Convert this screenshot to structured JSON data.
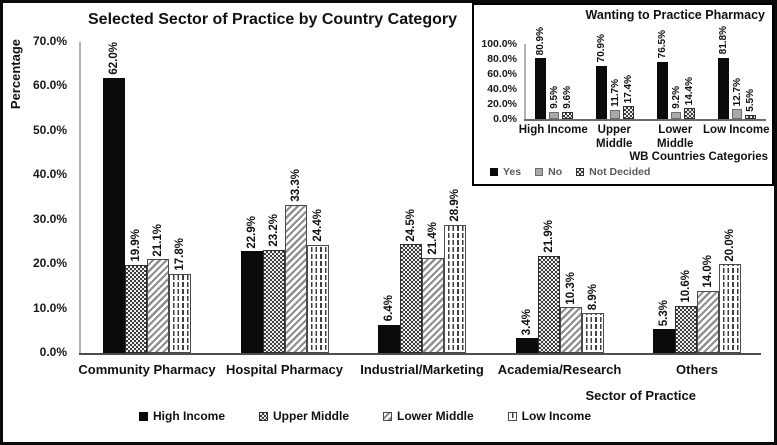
{
  "figure": {
    "background": "#ffffff",
    "border_color": "#000000"
  },
  "colors": {
    "bar_black": "#0b0b0b",
    "bar_gray": "#a9a9a9",
    "pattern_dark": "#3c3c3c",
    "axis_line": "#b3b3b3",
    "baseline": "#4d4d4d",
    "text": "#111111",
    "inset_legend_text": "#595959"
  },
  "chart_data": [
    {
      "id": "main",
      "type": "bar",
      "title": "Selected Sector of Practice by Country Category",
      "ylabel": "Percentage",
      "xlabel": "Sector of Practice",
      "ylim": [
        0,
        70
      ],
      "y_ticks": [
        "0.0%",
        "10.0%",
        "20.0%",
        "30.0%",
        "40.0%",
        "50.0%",
        "60.0%",
        "70.0%"
      ],
      "grid": false,
      "legend_position": "bottom",
      "value_label_suffix": "%",
      "categories": [
        "Community Pharmacy",
        "Hospital Pharmacy",
        "Industrial/Marketing",
        "Academia/Research",
        "Others"
      ],
      "series": [
        {
          "name": "High Income",
          "pattern": "solid-black",
          "values": [
            62.0,
            22.9,
            6.4,
            3.4,
            5.3
          ]
        },
        {
          "name": "Upper Middle",
          "pattern": "checker-dark",
          "values": [
            19.9,
            23.2,
            24.5,
            21.9,
            10.6
          ]
        },
        {
          "name": "Lower Middle",
          "pattern": "diagonal-hatch",
          "values": [
            21.1,
            33.3,
            21.4,
            10.3,
            14.0
          ]
        },
        {
          "name": "Low Income",
          "pattern": "vertical-dash",
          "values": [
            17.8,
            24.4,
            28.9,
            8.9,
            20.0
          ]
        }
      ]
    },
    {
      "id": "inset",
      "type": "bar",
      "title": "Wanting to Practice Pharmacy",
      "ylabel": "",
      "xlabel": "WB Countries Categories",
      "ylim": [
        0,
        100
      ],
      "y_ticks": [
        "0.0%",
        "20.0%",
        "40.0%",
        "60.0%",
        "80.0%",
        "100.0%"
      ],
      "grid": false,
      "legend_position": "bottom-left",
      "value_label_suffix": "%",
      "categories": [
        "High Income",
        "Upper Middle",
        "Lower Middle",
        "Low Income"
      ],
      "category_label_lines": [
        [
          "High Income"
        ],
        [
          "Upper",
          "Middle"
        ],
        [
          "Lower",
          "Middle"
        ],
        [
          "Low Income"
        ]
      ],
      "series": [
        {
          "name": "Yes",
          "pattern": "solid-black",
          "values": [
            80.9,
            70.9,
            76.5,
            81.8
          ]
        },
        {
          "name": "No",
          "pattern": "solid-gray",
          "values": [
            9.5,
            11.7,
            9.2,
            12.7
          ]
        },
        {
          "name": "Not Decided",
          "pattern": "checker-dark",
          "values": [
            9.6,
            17.4,
            14.4,
            5.5
          ]
        }
      ]
    }
  ]
}
